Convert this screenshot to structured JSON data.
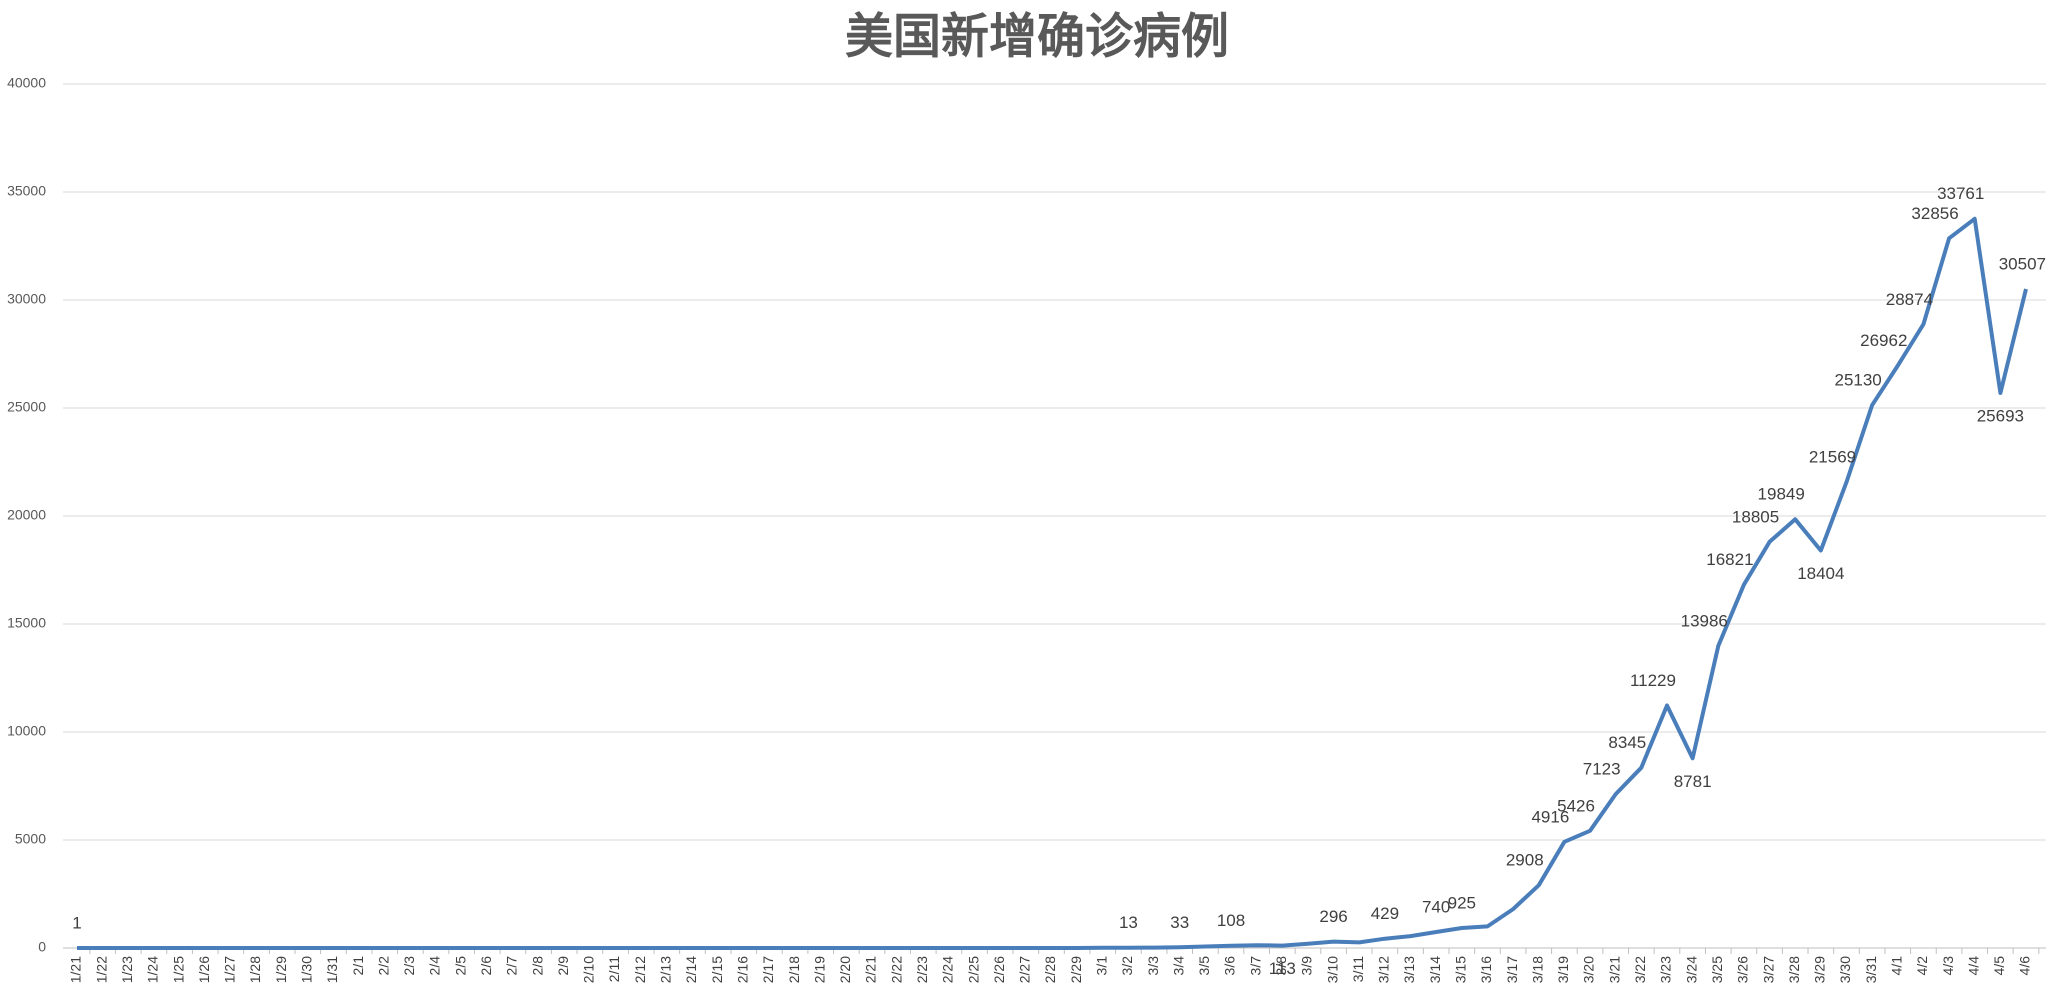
{
  "chart_data": {
    "type": "line",
    "title": "美国新增确诊病例",
    "categories": [
      "1/21",
      "1/22",
      "1/23",
      "1/24",
      "1/25",
      "1/26",
      "1/27",
      "1/28",
      "1/29",
      "1/30",
      "1/31",
      "2/1",
      "2/2",
      "2/3",
      "2/4",
      "2/5",
      "2/6",
      "2/7",
      "2/8",
      "2/9",
      "2/10",
      "2/11",
      "2/12",
      "2/13",
      "2/14",
      "2/15",
      "2/16",
      "2/17",
      "2/18",
      "2/19",
      "2/20",
      "2/21",
      "2/22",
      "2/23",
      "2/24",
      "2/25",
      "2/26",
      "2/27",
      "2/28",
      "2/29",
      "3/1",
      "3/2",
      "3/3",
      "3/4",
      "3/5",
      "3/6",
      "3/7",
      "3/8",
      "3/9",
      "3/10",
      "3/11",
      "3/12",
      "3/13",
      "3/14",
      "3/15",
      "3/16",
      "3/17",
      "3/18",
      "3/19",
      "3/20",
      "3/21",
      "3/22",
      "3/23",
      "3/24",
      "3/25",
      "3/26",
      "3/27",
      "3/28",
      "3/29",
      "3/30",
      "3/31",
      "4/1",
      "4/2",
      "4/3",
      "4/4",
      "4/5",
      "4/6"
    ],
    "values": [
      1,
      0,
      0,
      0,
      0,
      0,
      0,
      0,
      0,
      0,
      0,
      0,
      0,
      0,
      0,
      0,
      0,
      0,
      0,
      0,
      0,
      0,
      0,
      0,
      0,
      0,
      0,
      0,
      0,
      0,
      0,
      0,
      0,
      0,
      0,
      0,
      0,
      0,
      0,
      0,
      8,
      13,
      20,
      33,
      70,
      108,
      130,
      113,
      200,
      296,
      260,
      429,
      550,
      740,
      925,
      1000,
      1800,
      2908,
      4916,
      5426,
      7123,
      8345,
      11229,
      8781,
      13986,
      16821,
      18805,
      19849,
      18404,
      21569,
      25130,
      26962,
      28874,
      32856,
      33761,
      25693,
      30507
    ],
    "value_labels": [
      "1",
      null,
      null,
      null,
      null,
      null,
      null,
      null,
      null,
      null,
      null,
      null,
      null,
      null,
      null,
      null,
      null,
      null,
      null,
      null,
      null,
      null,
      null,
      null,
      null,
      null,
      null,
      null,
      null,
      null,
      null,
      null,
      null,
      null,
      null,
      null,
      null,
      null,
      null,
      null,
      null,
      "13",
      null,
      "33",
      null,
      "108",
      null,
      "113",
      null,
      "296",
      null,
      "429",
      null,
      "740",
      "925",
      null,
      null,
      "2908",
      "4916",
      "5426",
      "7123",
      "8345",
      "11229",
      "8781",
      "13986",
      "16821",
      "18805",
      "19849",
      "18404",
      "21569",
      "25130",
      "26962",
      "28874",
      "32856",
      "33761",
      "25693",
      "30507"
    ],
    "color": "#4a7ebb",
    "ylim": [
      0,
      40000
    ],
    "yticks": [
      0,
      5000,
      10000,
      15000,
      20000,
      25000,
      30000,
      35000,
      40000
    ],
    "grid": true
  }
}
